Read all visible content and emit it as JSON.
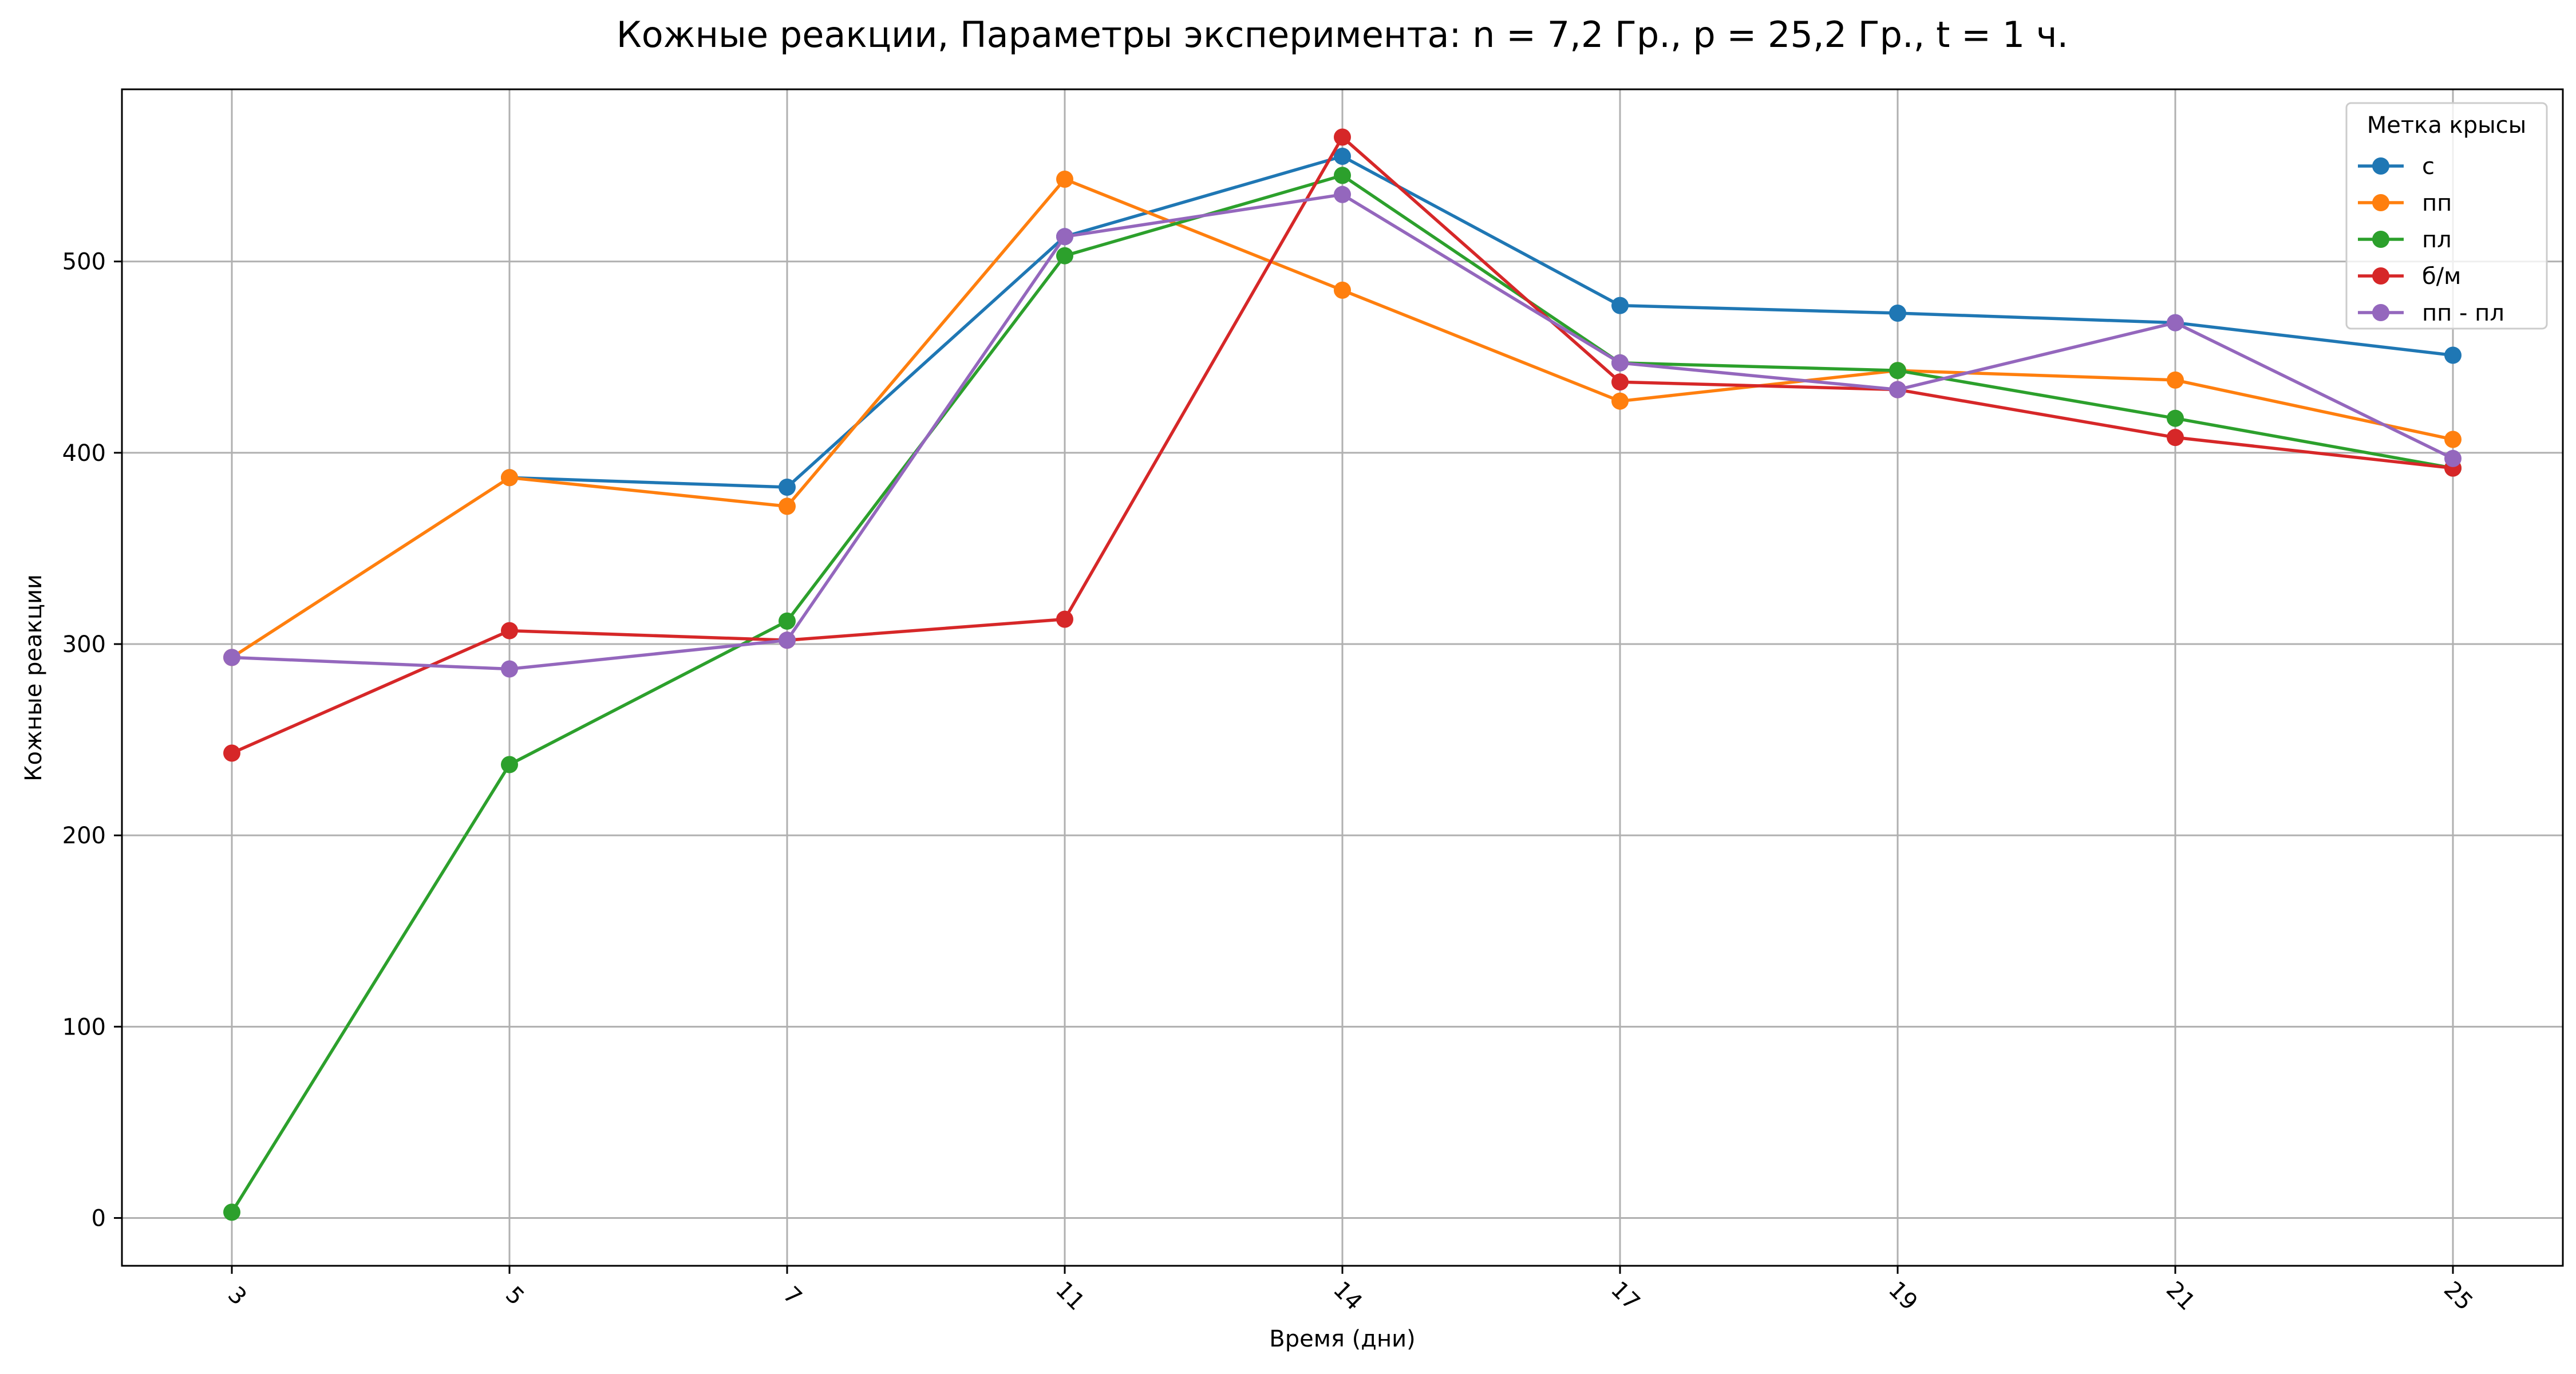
{
  "chart_data": {
    "type": "line",
    "title": "Кожные реакции, Параметры эксперимента: n = 7,2 Гр., p = 25,2 Гр., t = 1 ч.",
    "xlabel": "Время (дни)",
    "ylabel": "Кожные реакции",
    "categories": [
      "3",
      "5",
      "7",
      "11",
      "14",
      "17",
      "19",
      "21",
      "25"
    ],
    "ylim": [
      -25,
      590
    ],
    "yticks": [
      0,
      100,
      200,
      300,
      400,
      500
    ],
    "grid": true,
    "legend": {
      "title": "Метка крысы",
      "placement": "top-right"
    },
    "series": [
      {
        "name": "с",
        "color": "#1f77b4",
        "values": [
          null,
          387,
          382,
          513,
          555,
          477,
          473,
          468,
          451
        ]
      },
      {
        "name": "пп",
        "color": "#ff7f0e",
        "values": [
          293,
          387,
          372,
          543,
          485,
          427,
          443,
          438,
          407
        ]
      },
      {
        "name": "пл",
        "color": "#2ca02c",
        "values": [
          3,
          237,
          312,
          503,
          545,
          447,
          443,
          418,
          392
        ]
      },
      {
        "name": "б/м",
        "color": "#d62728",
        "values": [
          243,
          307,
          302,
          313,
          565,
          437,
          433,
          408,
          392
        ]
      },
      {
        "name": "пп - пл",
        "color": "#9467bd",
        "values": [
          293,
          287,
          302,
          513,
          535,
          447,
          433,
          468,
          397
        ]
      }
    ]
  }
}
